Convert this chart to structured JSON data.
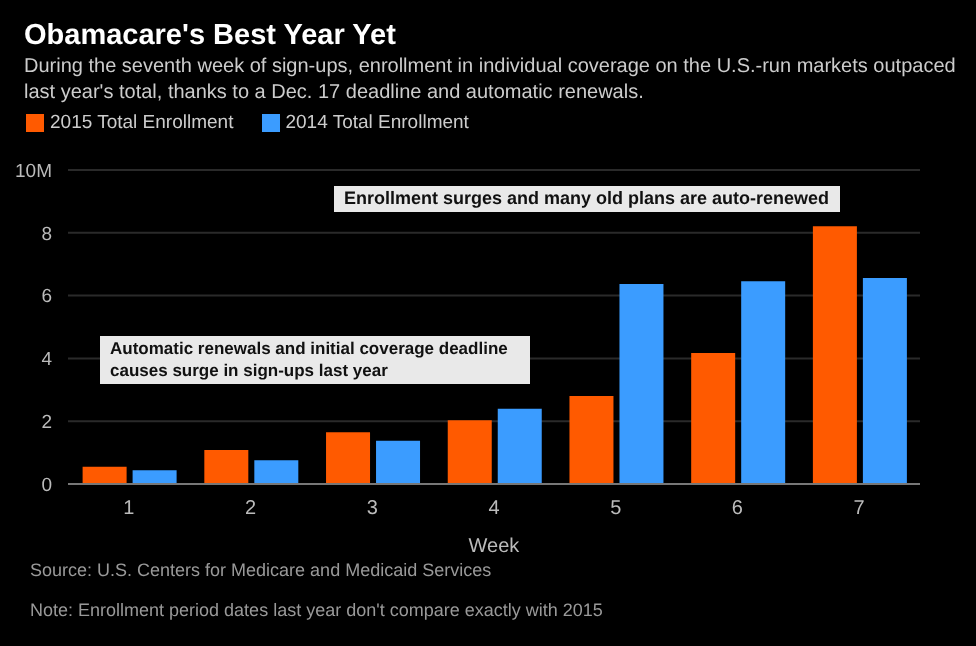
{
  "chart_data": {
    "type": "bar",
    "title": "Obamacare's Best Year Yet",
    "subtitle": "During the seventh week of sign-ups, enrollment in individual coverage on the U.S.-run markets outpaced last year's total, thanks to a Dec. 17 deadline and automatic renewals.",
    "xlabel": "Week",
    "categories": [
      "1",
      "2",
      "3",
      "4",
      "5",
      "6",
      "7"
    ],
    "series": [
      {
        "name": "2015 Total Enrollment",
        "color": "#ff5a00",
        "values": [
          0.55,
          1.08,
          1.65,
          2.03,
          2.8,
          4.17,
          8.21
        ]
      },
      {
        "name": "2014 Total Enrollment",
        "color": "#3b9cff",
        "values": [
          0.44,
          0.76,
          1.38,
          2.4,
          6.37,
          6.46,
          6.56
        ]
      }
    ],
    "ylim": [
      0,
      10
    ],
    "yticks": [
      0,
      2,
      4,
      6,
      8,
      {
        "value": 10,
        "label": "10M"
      }
    ],
    "grid": "y",
    "legend": "top left",
    "annotations": [
      "Enrollment surges and many old plans are auto-renewed",
      "Automatic renewals and initial coverage deadline causes surge in sign-ups last year",
      "Source: U.S. Centers for Medicare and Medicaid Services",
      "Note: Enrollment period dates last year don't compare exactly with 2015"
    ]
  }
}
